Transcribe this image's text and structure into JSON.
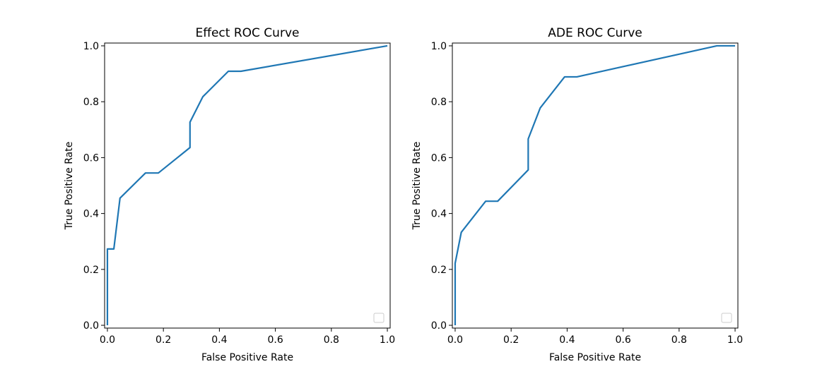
{
  "chart_data": [
    {
      "type": "line",
      "title": "Effect ROC Curve",
      "xlabel": "False Positive Rate",
      "ylabel": "True Positive Rate",
      "xlim": [
        -0.01,
        1.01
      ],
      "ylim": [
        -0.01,
        1.01
      ],
      "xticks": [
        0.0,
        0.2,
        0.4,
        0.6,
        0.8,
        1.0
      ],
      "yticks": [
        0.0,
        0.2,
        0.4,
        0.6,
        0.8,
        1.0
      ],
      "tick_labels": [
        "0.0",
        "0.2",
        "0.4",
        "0.6",
        "0.8",
        "1.0"
      ],
      "grid": false,
      "legend": "lower-right",
      "series": [
        {
          "color": "#1f77b4",
          "x": [
            0.0,
            0.0,
            0.0,
            0.023,
            0.045,
            0.136,
            0.182,
            0.295,
            0.295,
            0.341,
            0.432,
            0.477,
            1.0
          ],
          "y": [
            0.0,
            0.0,
            0.273,
            0.273,
            0.455,
            0.545,
            0.545,
            0.636,
            0.727,
            0.818,
            0.909,
            0.909,
            1.0
          ]
        }
      ]
    },
    {
      "type": "line",
      "title": "ADE ROC Curve",
      "xlabel": "False Positive Rate",
      "ylabel": "True Positive Rate",
      "xlim": [
        -0.01,
        1.01
      ],
      "ylim": [
        -0.01,
        1.01
      ],
      "xticks": [
        0.0,
        0.2,
        0.4,
        0.6,
        0.8,
        1.0
      ],
      "yticks": [
        0.0,
        0.2,
        0.4,
        0.6,
        0.8,
        1.0
      ],
      "tick_labels": [
        "0.0",
        "0.2",
        "0.4",
        "0.6",
        "0.8",
        "1.0"
      ],
      "grid": false,
      "legend": "lower-right",
      "series": [
        {
          "color": "#1f77b4",
          "x": [
            0.0,
            0.0,
            0.022,
            0.109,
            0.152,
            0.261,
            0.261,
            0.304,
            0.391,
            0.435,
            0.935,
            1.0
          ],
          "y": [
            0.0,
            0.222,
            0.333,
            0.444,
            0.444,
            0.556,
            0.667,
            0.778,
            0.889,
            0.889,
            1.0,
            1.0
          ]
        }
      ]
    }
  ]
}
